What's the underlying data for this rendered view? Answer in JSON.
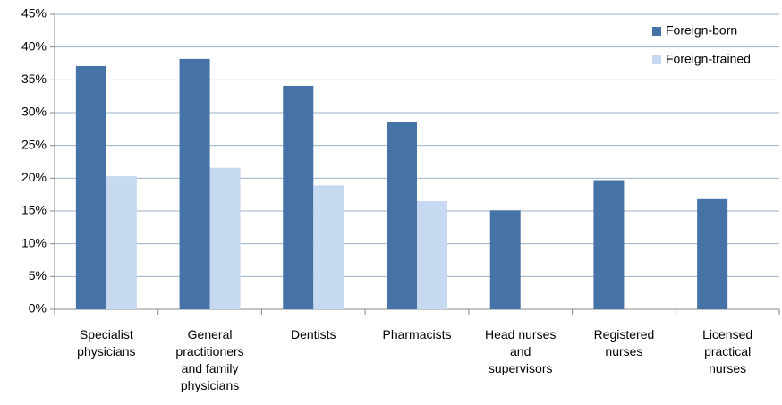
{
  "chart_data": {
    "type": "bar",
    "categories": [
      "Specialist physicians",
      "General practitioners and family physicians",
      "Dentists",
      "Pharmacists",
      "Head nurses and supervisors",
      "Registered nurses",
      "Licensed practical nurses"
    ],
    "series": [
      {
        "name": "Foreign-born",
        "color": "#4572a7",
        "values": [
          37.1,
          38.2,
          34.1,
          28.5,
          15.1,
          19.7,
          16.8
        ]
      },
      {
        "name": "Foreign-trained",
        "color": "#c6d9f1",
        "values": [
          20.3,
          21.6,
          18.9,
          16.5,
          null,
          null,
          null
        ]
      }
    ],
    "ylim": [
      0,
      45
    ],
    "yticks": [
      {
        "value": 0,
        "label": "0%"
      },
      {
        "value": 5,
        "label": "5%"
      },
      {
        "value": 10,
        "label": "10%"
      },
      {
        "value": 15,
        "label": "15%"
      },
      {
        "value": 20,
        "label": "20%"
      },
      {
        "value": 25,
        "label": "25%"
      },
      {
        "value": 30,
        "label": "30%"
      },
      {
        "value": 35,
        "label": "35%"
      },
      {
        "value": 40,
        "label": "40%"
      },
      {
        "value": 45,
        "label": "45%"
      }
    ],
    "grid": true,
    "legend": "top-right"
  }
}
